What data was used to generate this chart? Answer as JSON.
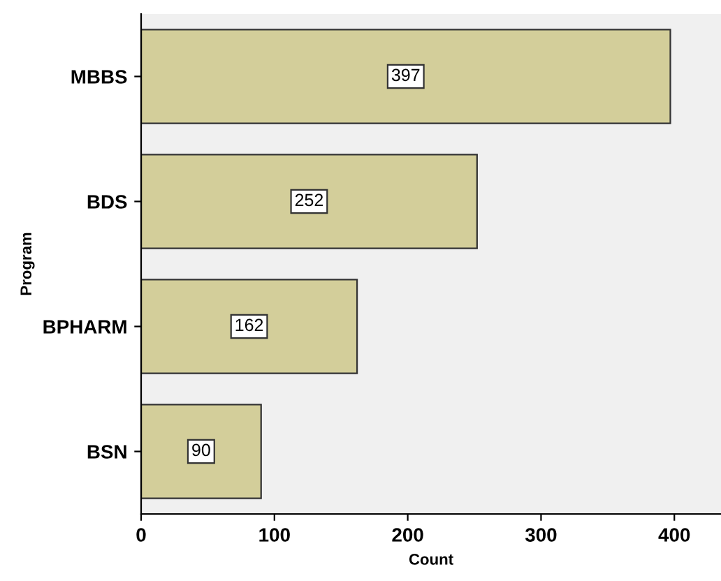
{
  "chart_data": {
    "type": "bar",
    "orientation": "horizontal",
    "xlabel": "Count",
    "ylabel": "Program",
    "categories": [
      "MBBS",
      "BDS",
      "BPHARM",
      "BSN"
    ],
    "values": [
      397,
      252,
      162,
      90
    ],
    "color": "#d3ce9a",
    "xlim": [
      0,
      435
    ],
    "xticks": [
      0,
      100,
      200,
      300,
      400
    ],
    "data_labels": true,
    "grid": false,
    "legend": false
  }
}
